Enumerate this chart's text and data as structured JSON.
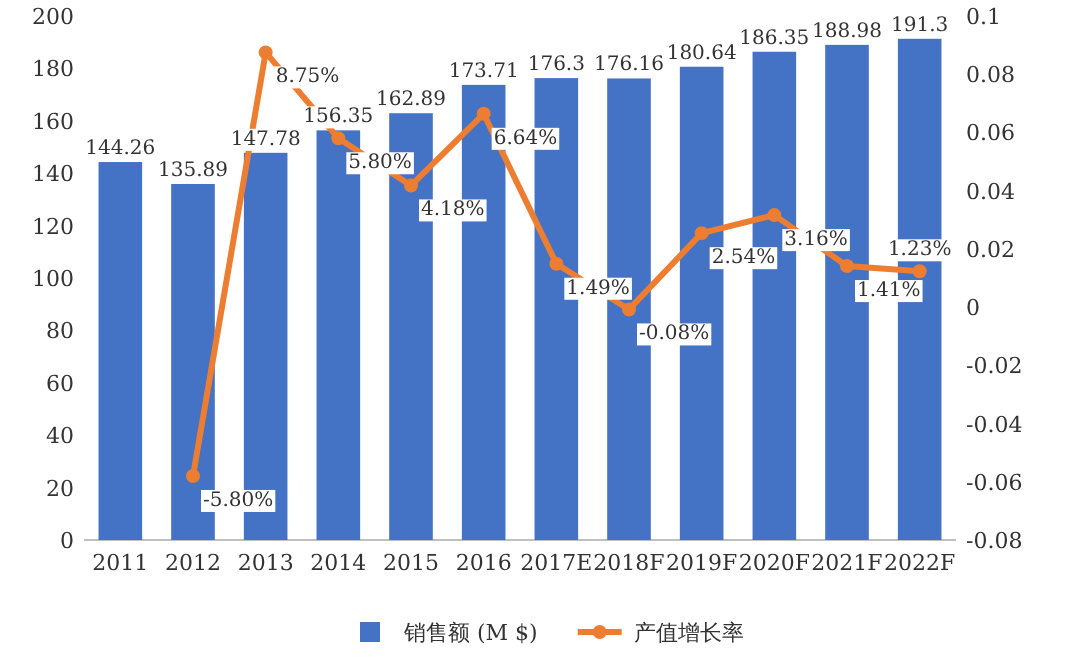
{
  "chart_data": {
    "type": "bar",
    "categories": [
      "2011",
      "2012",
      "2013",
      "2014",
      "2015",
      "2016",
      "2017E",
      "2018F",
      "2019F",
      "2020F",
      "2021F",
      "2022F"
    ],
    "series": [
      {
        "name": "销售额 (M $)",
        "color": "#4472c4",
        "values": [
          144.26,
          135.89,
          147.78,
          156.35,
          162.89,
          173.71,
          176.3,
          176.16,
          180.64,
          186.35,
          188.98,
          191.3
        ],
        "value_labels": [
          "144.26",
          "135.89",
          "147.78",
          "156.35",
          "162.89",
          "173.71",
          "176.3",
          "176.16",
          "180.64",
          "186.35",
          "188.98",
          "191.3"
        ]
      },
      {
        "name": "产值增长率",
        "type": "line",
        "axis": "y2",
        "color": "#ed7d31",
        "values": [
          null,
          -0.058,
          0.0875,
          0.058,
          0.0418,
          0.0664,
          0.0149,
          -0.0008,
          0.0254,
          0.0316,
          0.0141,
          0.0123
        ],
        "value_labels": [
          null,
          "-5.80%",
          "8.75%",
          "5.80%",
          "4.18%",
          "6.64%",
          "1.49%",
          "-0.08%",
          "2.54%",
          "3.16%",
          "1.41%",
          "1.23%"
        ]
      }
    ],
    "ylim": [
      0,
      200
    ],
    "yticks": [
      0,
      20,
      40,
      60,
      80,
      100,
      120,
      140,
      160,
      180,
      200
    ],
    "y2lim": [
      -0.08,
      0.1
    ],
    "y2ticks": [
      -0.08,
      -0.06,
      -0.04,
      -0.02,
      0,
      0.02,
      0.04,
      0.06,
      0.08,
      0.1
    ],
    "legend": "bottom",
    "marker": "circle"
  }
}
